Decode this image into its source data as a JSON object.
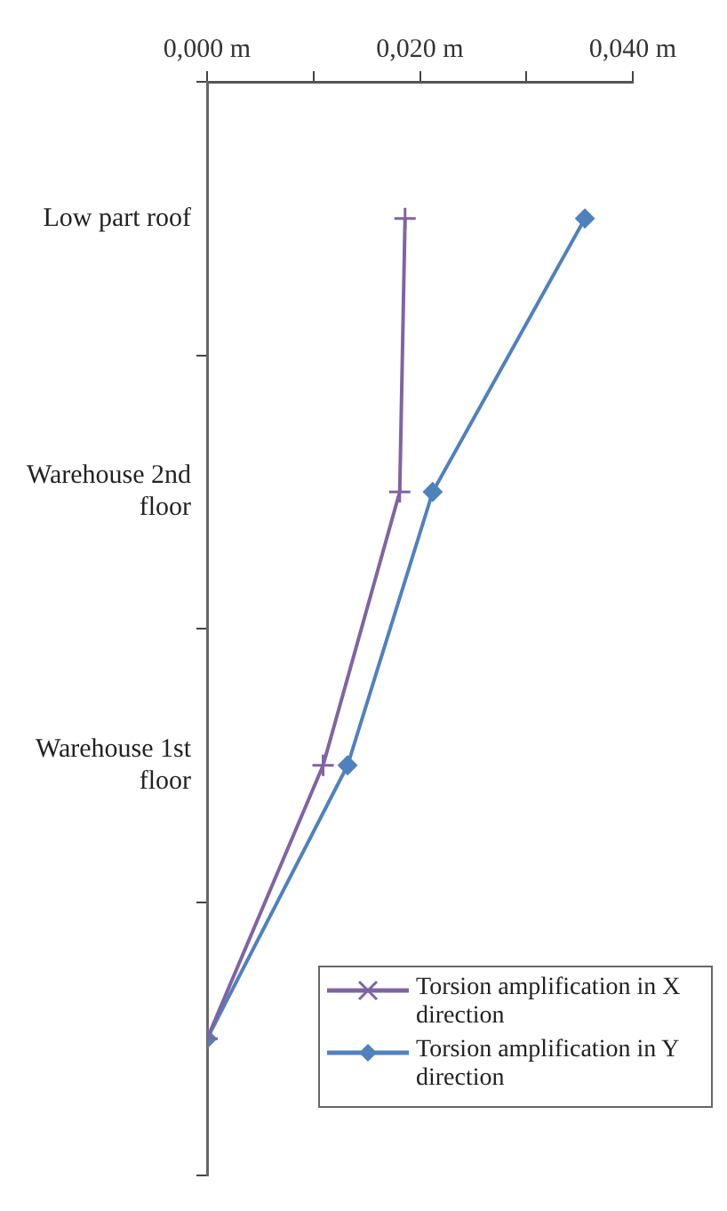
{
  "chart_data": {
    "type": "line",
    "orientation": "horizontal",
    "categories": [
      "Low part roof",
      "Warehouse 2nd floor",
      "Warehouse 1st floor",
      null
    ],
    "series": [
      {
        "name": "Torsion amplification in X direction",
        "color": "#8064a2",
        "marker": "cross",
        "values": [
          0.0186,
          0.0181,
          0.0109,
          0
        ]
      },
      {
        "name": "Torsion amplification in Y direction",
        "color": "#4f81bd",
        "marker": "diamond",
        "values": [
          0.0355,
          0.0212,
          0.0132,
          0
        ]
      }
    ],
    "xlim": [
      0,
      0.04
    ],
    "xticks": [
      {
        "value": 0,
        "label": "0,000 m"
      },
      {
        "value": 0.01,
        "label": null
      },
      {
        "value": 0.02,
        "label": "0,020 m"
      },
      {
        "value": 0.03,
        "label": null
      },
      {
        "value": 0.04,
        "label": "0,040 m"
      }
    ],
    "grid": false,
    "legend": "bottom right",
    "line_style": "solid"
  }
}
